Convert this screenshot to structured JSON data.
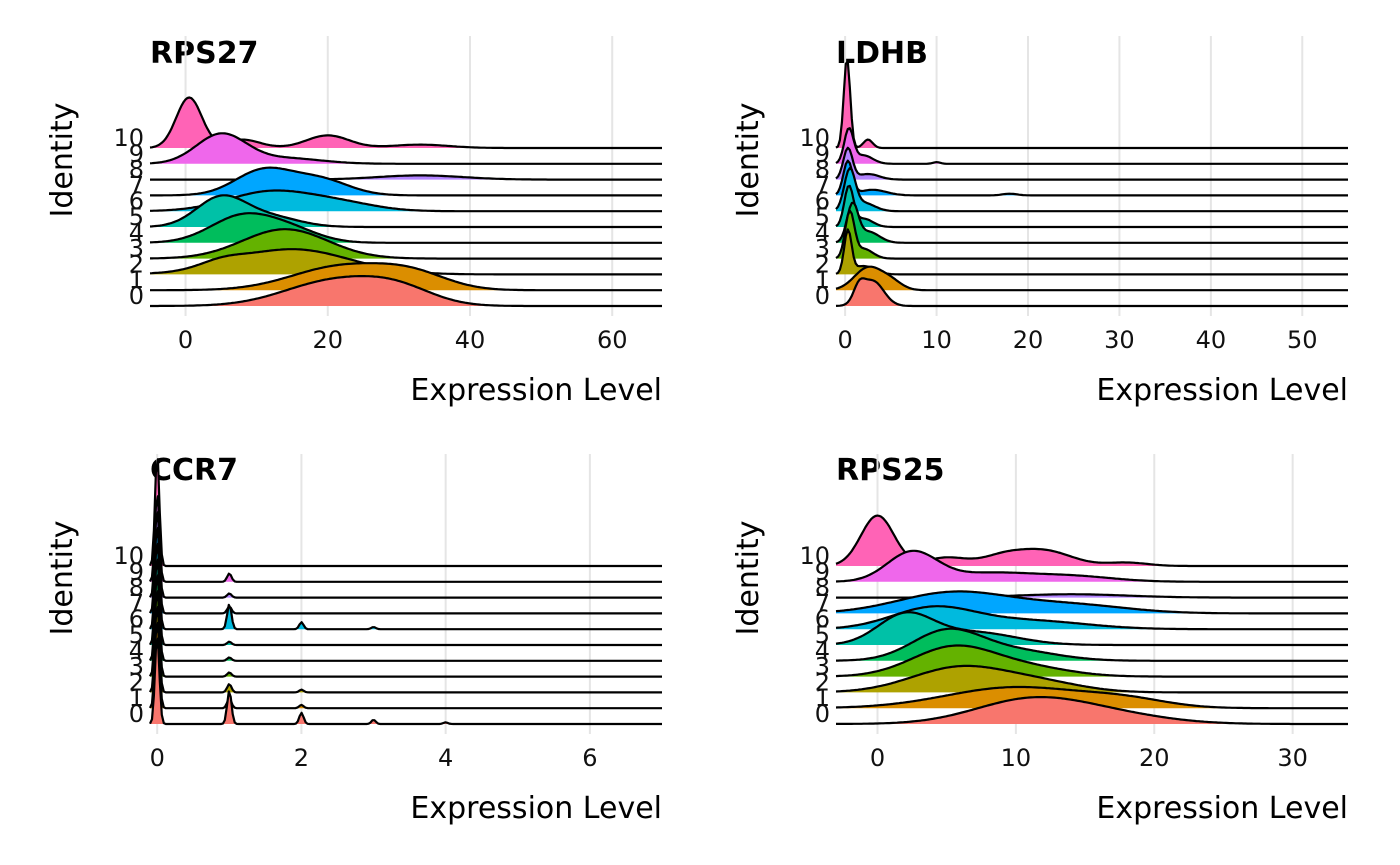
{
  "figure": {
    "identity_levels": [
      "0",
      "1",
      "2",
      "3",
      "4",
      "5",
      "6",
      "7",
      "8",
      "9",
      "10"
    ],
    "group_colors": [
      "#F8766D",
      "#DB8E00",
      "#AEA200",
      "#64B200",
      "#00BD5C",
      "#00C1A7",
      "#00BADE",
      "#00A6FF",
      "#B385FF",
      "#EF67EB",
      "#FF63B6"
    ]
  },
  "chart_data": [
    {
      "type": "ridgeline",
      "title": "RPS27",
      "xlabel": "Expression Level",
      "ylabel": "Identity",
      "xlim": [
        -5,
        67
      ],
      "xticks": [
        0,
        20,
        40,
        60
      ],
      "grid": "vertical",
      "ridges": [
        {
          "group": "0",
          "peaks": [
            [
              21,
              7,
              0.9
            ],
            [
              30,
              5,
              0.5
            ]
          ]
        },
        {
          "group": "1",
          "peaks": [
            [
              22,
              7,
              0.85
            ],
            [
              32,
              5,
              0.5
            ]
          ]
        },
        {
          "group": "2",
          "peaks": [
            [
              15,
              8,
              0.9
            ],
            [
              5,
              3,
              0.2
            ]
          ]
        },
        {
          "group": "3",
          "peaks": [
            [
              14,
              6,
              1.05
            ]
          ]
        },
        {
          "group": "4",
          "peaks": [
            [
              8,
              4.5,
              0.95
            ],
            [
              15,
              4,
              0.4
            ]
          ]
        },
        {
          "group": "5",
          "peaks": [
            [
              5,
              3.5,
              1.05
            ],
            [
              12,
              4,
              0.35
            ]
          ]
        },
        {
          "group": "6",
          "peaks": [
            [
              12,
              6,
              0.7
            ],
            [
              22,
              5,
              0.25
            ]
          ]
        },
        {
          "group": "7",
          "peaks": [
            [
              11,
              4,
              0.9
            ],
            [
              19,
              4,
              0.55
            ]
          ]
        },
        {
          "group": "8",
          "peaks": [
            [
              33,
              6,
              0.15
            ]
          ]
        },
        {
          "group": "9",
          "peaks": [
            [
              5,
              3.5,
              1.05
            ],
            [
              14,
              5,
              0.2
            ]
          ]
        },
        {
          "group": "10",
          "peaks": [
            [
              0.5,
              1.8,
              1.8
            ],
            [
              8,
              2.5,
              0.3
            ],
            [
              20,
              3,
              0.45
            ],
            [
              33,
              4,
              0.12
            ]
          ]
        }
      ]
    },
    {
      "type": "ridgeline",
      "title": "LDHB",
      "xlabel": "Expression Level",
      "ylabel": "Identity",
      "xlim": [
        -1,
        55
      ],
      "xticks": [
        0,
        10,
        20,
        30,
        40,
        50
      ],
      "grid": "vertical",
      "ridges": [
        {
          "group": "0",
          "peaks": [
            [
              3,
              1.2,
              0.9
            ],
            [
              1.5,
              0.6,
              0.5
            ]
          ]
        },
        {
          "group": "1",
          "peaks": [
            [
              2.5,
              1.5,
              0.8
            ],
            [
              5,
              1.2,
              0.3
            ]
          ]
        },
        {
          "group": "2",
          "peaks": [
            [
              0.3,
              0.4,
              1.5
            ],
            [
              2,
              1.2,
              0.3
            ]
          ]
        },
        {
          "group": "3",
          "peaks": [
            [
              0.5,
              0.5,
              1.6
            ],
            [
              2,
              1,
              0.35
            ]
          ]
        },
        {
          "group": "4",
          "peaks": [
            [
              0.8,
              0.6,
              1.3
            ],
            [
              2.5,
              1.2,
              0.4
            ]
          ]
        },
        {
          "group": "5",
          "peaks": [
            [
              0.4,
              0.5,
              1.4
            ],
            [
              2,
              1,
              0.3
            ]
          ]
        },
        {
          "group": "6",
          "peaks": [
            [
              0.5,
              0.6,
              1.4
            ],
            [
              2,
              1.2,
              0.3
            ]
          ]
        },
        {
          "group": "7",
          "peaks": [
            [
              0.3,
              0.5,
              1.2
            ],
            [
              3,
              1.5,
              0.2
            ],
            [
              18,
              0.8,
              0.06
            ]
          ]
        },
        {
          "group": "8",
          "peaks": [
            [
              0.3,
              0.5,
              1.1
            ],
            [
              2.5,
              1.2,
              0.2
            ]
          ]
        },
        {
          "group": "9",
          "peaks": [
            [
              0.4,
              0.5,
              1.2
            ],
            [
              2,
              1,
              0.3
            ],
            [
              10,
              0.4,
              0.06
            ]
          ]
        },
        {
          "group": "10",
          "peaks": [
            [
              0.2,
              0.35,
              3.2
            ],
            [
              2.5,
              0.5,
              0.3
            ]
          ]
        }
      ]
    },
    {
      "type": "ridgeline",
      "title": "CCR7",
      "xlabel": "Expression Level",
      "ylabel": "Identity",
      "xlim": [
        -0.1,
        7
      ],
      "xticks": [
        0,
        2,
        4,
        6
      ],
      "grid": "vertical",
      "ridges": [
        {
          "group": "0",
          "peaks": [
            [
              0,
              0.03,
              3.2
            ],
            [
              1,
              0.03,
              1.2
            ],
            [
              2,
              0.03,
              0.4
            ],
            [
              3,
              0.03,
              0.15
            ],
            [
              4,
              0.03,
              0.06
            ]
          ]
        },
        {
          "group": "1",
          "peaks": [
            [
              0,
              0.03,
              3.2
            ],
            [
              1,
              0.03,
              0.35
            ],
            [
              2,
              0.03,
              0.12
            ]
          ]
        },
        {
          "group": "2",
          "peaks": [
            [
              0,
              0.03,
              3.2
            ],
            [
              1,
              0.03,
              0.3
            ],
            [
              2,
              0.03,
              0.1
            ]
          ]
        },
        {
          "group": "3",
          "peaks": [
            [
              0,
              0.03,
              3.2
            ],
            [
              1,
              0.03,
              0.15
            ]
          ]
        },
        {
          "group": "4",
          "peaks": [
            [
              0,
              0.03,
              3.2
            ],
            [
              1,
              0.03,
              0.12
            ]
          ]
        },
        {
          "group": "5",
          "peaks": [
            [
              0,
              0.03,
              3.2
            ],
            [
              1,
              0.03,
              0.12
            ]
          ]
        },
        {
          "group": "6",
          "peaks": [
            [
              0,
              0.03,
              3.2
            ],
            [
              1,
              0.03,
              0.9
            ],
            [
              2,
              0.03,
              0.25
            ],
            [
              3,
              0.03,
              0.08
            ]
          ]
        },
        {
          "group": "7",
          "peaks": [
            [
              0,
              0.03,
              3.2
            ],
            [
              1,
              0.03,
              0.25
            ]
          ]
        },
        {
          "group": "8",
          "peaks": [
            [
              0,
              0.03,
              3.2
            ],
            [
              1,
              0.03,
              0.15
            ]
          ]
        },
        {
          "group": "9",
          "peaks": [
            [
              0,
              0.03,
              3.2
            ],
            [
              1,
              0.03,
              0.3
            ]
          ]
        },
        {
          "group": "10",
          "peaks": [
            [
              0,
              0.03,
              4.0
            ]
          ]
        }
      ]
    },
    {
      "type": "ridgeline",
      "title": "RPS25",
      "xlabel": "Expression Level",
      "ylabel": "Identity",
      "xlim": [
        -3,
        34
      ],
      "xticks": [
        0,
        10,
        20,
        30
      ],
      "grid": "vertical",
      "ridges": [
        {
          "group": "0",
          "peaks": [
            [
              11,
              4,
              0.85
            ],
            [
              17,
              4,
              0.3
            ]
          ]
        },
        {
          "group": "1",
          "peaks": [
            [
              10,
              5,
              0.75
            ],
            [
              18,
              3,
              0.25
            ]
          ]
        },
        {
          "group": "2",
          "peaks": [
            [
              6,
              3.5,
              0.9
            ],
            [
              12,
              3,
              0.3
            ]
          ]
        },
        {
          "group": "3",
          "peaks": [
            [
              5.5,
              3,
              1.05
            ],
            [
              11,
              3,
              0.3
            ]
          ]
        },
        {
          "group": "4",
          "peaks": [
            [
              5,
              2.5,
              1.05
            ],
            [
              10,
              3,
              0.35
            ]
          ]
        },
        {
          "group": "5",
          "peaks": [
            [
              2,
              2,
              1.05
            ],
            [
              7,
              3,
              0.45
            ]
          ]
        },
        {
          "group": "6",
          "peaks": [
            [
              4,
              3,
              0.75
            ],
            [
              11,
              4,
              0.3
            ]
          ]
        },
        {
          "group": "7",
          "peaks": [
            [
              5.5,
              4,
              0.75
            ],
            [
              14,
              4,
              0.3
            ]
          ]
        },
        {
          "group": "8",
          "peaks": [
            [
              14,
              4,
              0.12
            ]
          ]
        },
        {
          "group": "9",
          "peaks": [
            [
              2.5,
              1.8,
              1.05
            ],
            [
              8,
              3,
              0.3
            ],
            [
              14,
              3,
              0.2
            ]
          ]
        },
        {
          "group": "10",
          "peaks": [
            [
              0,
              1.2,
              1.8
            ],
            [
              5,
              1.5,
              0.3
            ],
            [
              9,
              1.5,
              0.3
            ],
            [
              12,
              2,
              0.55
            ],
            [
              18,
              1.5,
              0.12
            ]
          ]
        }
      ]
    }
  ]
}
